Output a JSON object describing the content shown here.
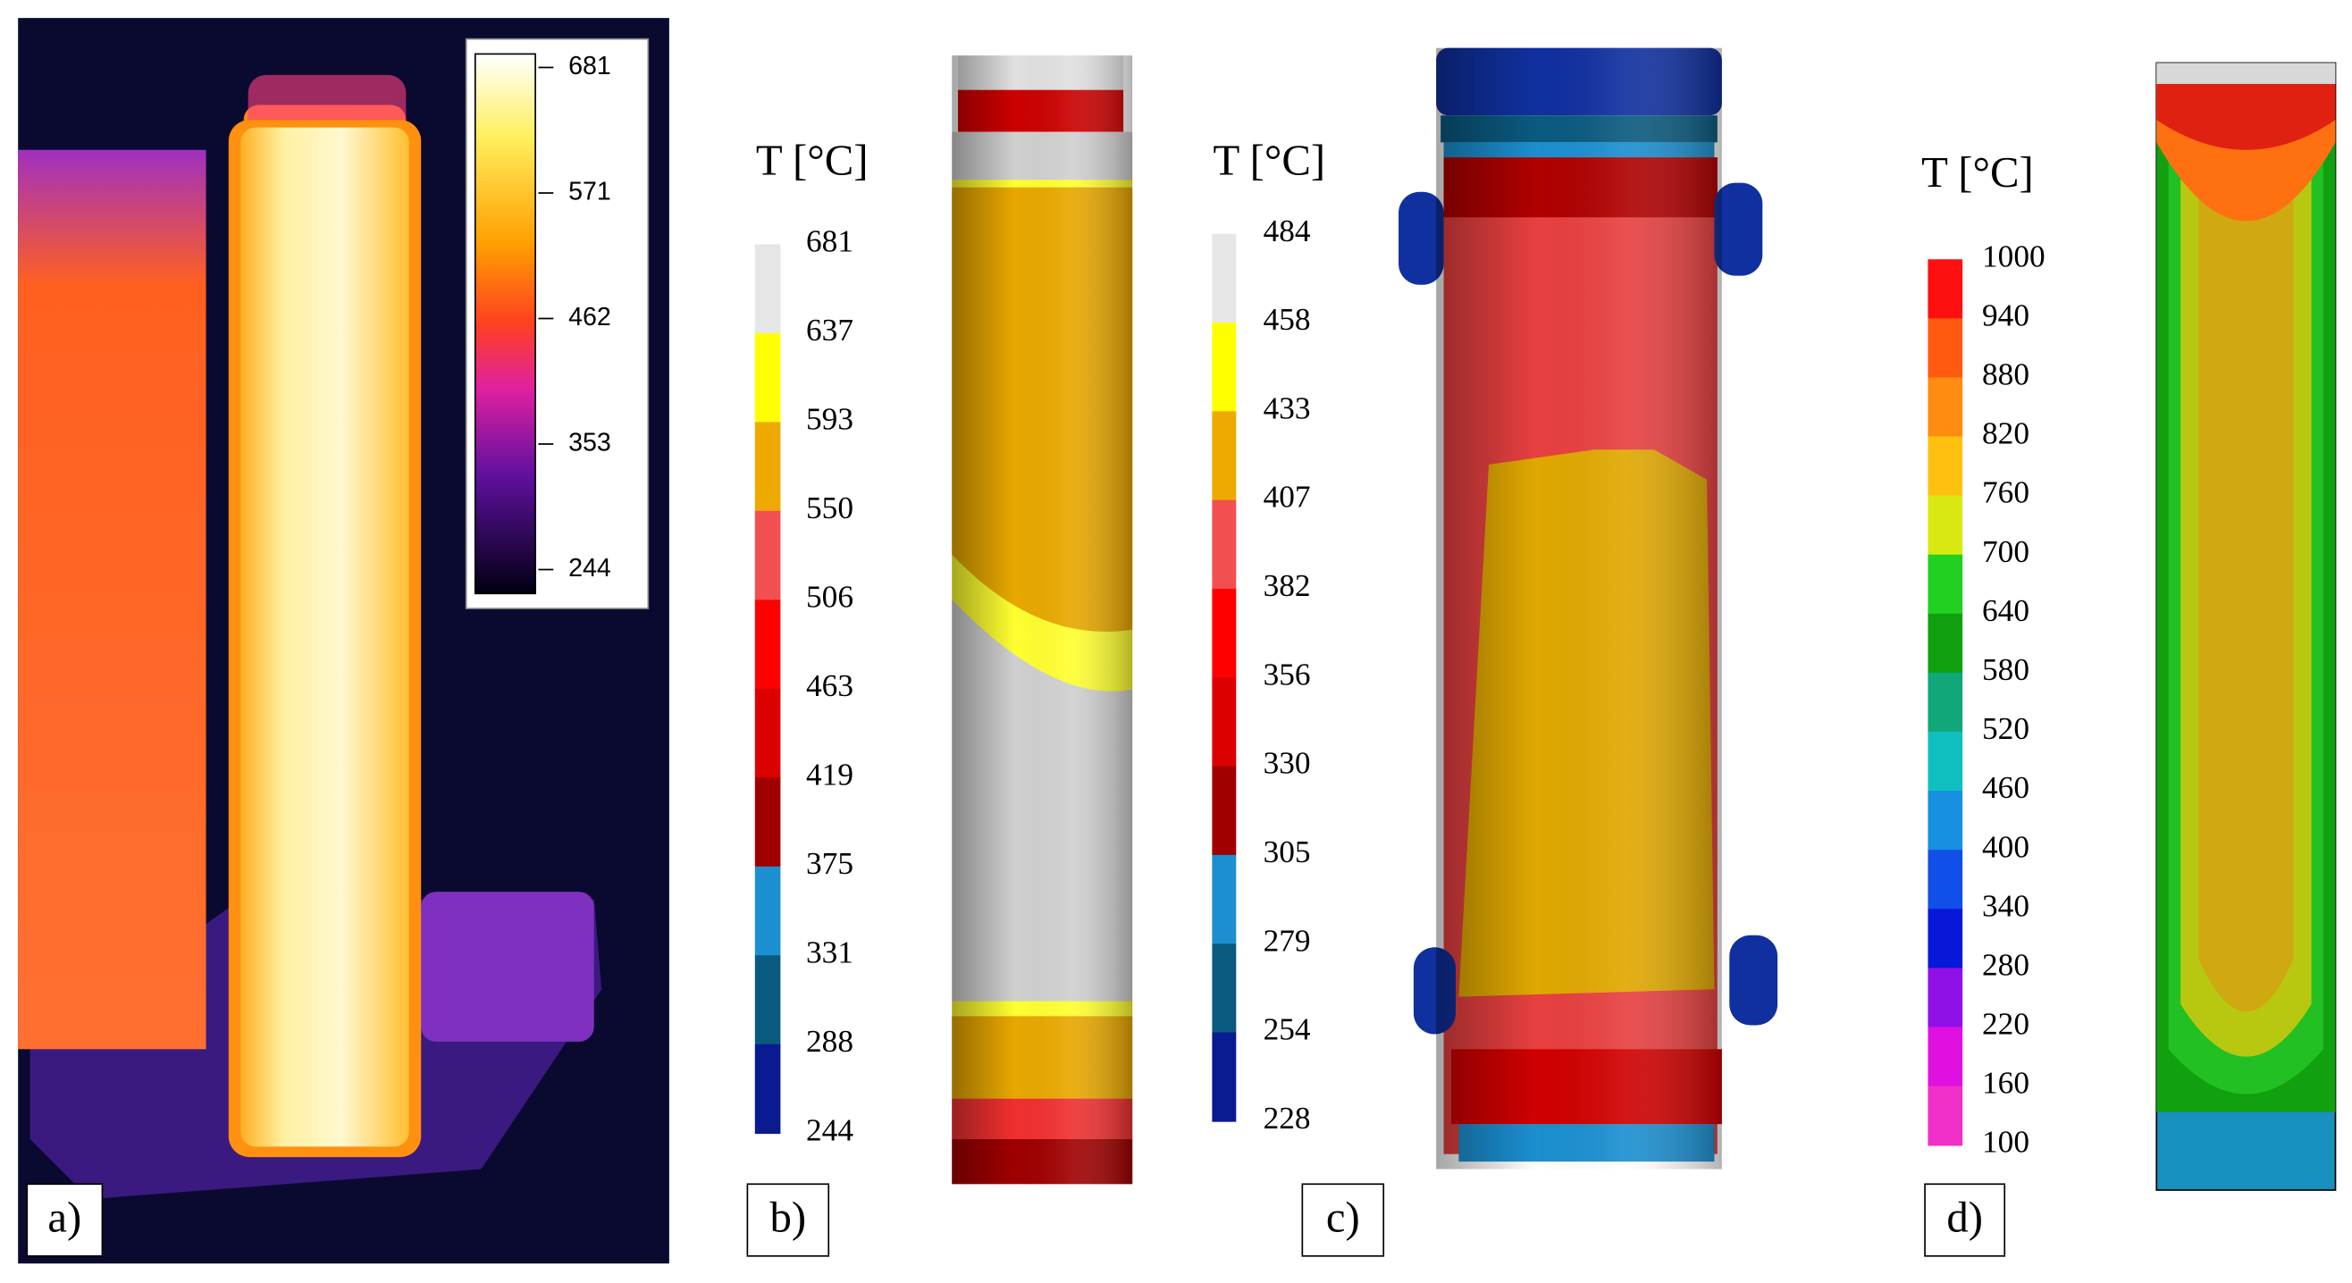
{
  "panels": [
    {
      "label": "a)",
      "colorbar": {
        "ticks": [
          681,
          571,
          462,
          353,
          244
        ]
      }
    },
    {
      "label": "b)",
      "colorbar": {
        "title": "T [°C]",
        "ticks": [
          681,
          637,
          593,
          550,
          506,
          463,
          419,
          375,
          331,
          288,
          244
        ],
        "colors": [
          "#e6e6e6",
          "#ffff00",
          "#eeaa00",
          "#f25050",
          "#ff0000",
          "#dd0000",
          "#a00000",
          "#1b8fd0",
          "#0a5a80",
          "#0a1a90"
        ]
      }
    },
    {
      "label": "c)",
      "colorbar": {
        "title": "T [°C]",
        "ticks": [
          484,
          458,
          433,
          407,
          382,
          356,
          330,
          305,
          279,
          254,
          228
        ],
        "colors": [
          "#e6e6e6",
          "#ffff00",
          "#eeaa00",
          "#f25050",
          "#ff0000",
          "#dd0000",
          "#a00000",
          "#1b8fd0",
          "#0a5a80",
          "#0a1a90"
        ]
      }
    },
    {
      "label": "d)",
      "colorbar": {
        "title": "T [°C]",
        "ticks": [
          1000,
          940,
          880,
          820,
          760,
          700,
          640,
          580,
          520,
          460,
          400,
          340,
          280,
          220,
          160,
          100
        ],
        "colors": [
          "#ff1010",
          "#ff5a10",
          "#ff8c10",
          "#ffc010",
          "#d8e810",
          "#22d022",
          "#10a010",
          "#10a878",
          "#10c0c0",
          "#1890e0",
          "#1050e8",
          "#0818d8",
          "#9010e8",
          "#e010e0",
          "#f030c8"
        ]
      }
    }
  ]
}
